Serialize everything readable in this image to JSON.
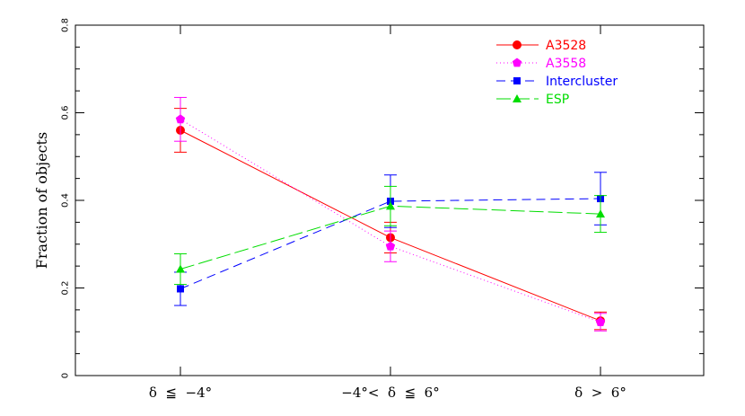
{
  "chart_data": {
    "type": "line",
    "title": "",
    "xlabel": "",
    "ylabel": "Fraction of objects",
    "categories": [
      "δ  ≦  −4°",
      "−4°<  δ  ≦  6°",
      "δ  >  6°"
    ],
    "ylim": [
      0,
      0.8
    ],
    "yticks": [
      "0",
      "0.2",
      "0.4",
      "0.6",
      "0.8"
    ],
    "grid": false,
    "legend_position": "top-right",
    "series": [
      {
        "name": "A3528",
        "color": "#ff0000",
        "marker": "circle",
        "dash": "",
        "values": [
          0.56,
          0.315,
          0.125
        ],
        "err": [
          0.05,
          0.035,
          0.02
        ]
      },
      {
        "name": "A3558",
        "color": "#ff00ff",
        "marker": "pentagon",
        "dash": "1,3",
        "values": [
          0.585,
          0.295,
          0.122
        ],
        "err": [
          0.05,
          0.035,
          0.02
        ]
      },
      {
        "name": "Intercluster",
        "color": "#0000ff",
        "marker": "square",
        "dash": "10,6",
        "values": [
          0.198,
          0.398,
          0.404
        ],
        "err": [
          0.038,
          0.06,
          0.06
        ]
      },
      {
        "name": "ESP",
        "color": "#00dd00",
        "marker": "triangle",
        "dash": "16,5",
        "values": [
          0.243,
          0.387,
          0.369
        ],
        "err": [
          0.035,
          0.045,
          0.042
        ]
      }
    ]
  }
}
